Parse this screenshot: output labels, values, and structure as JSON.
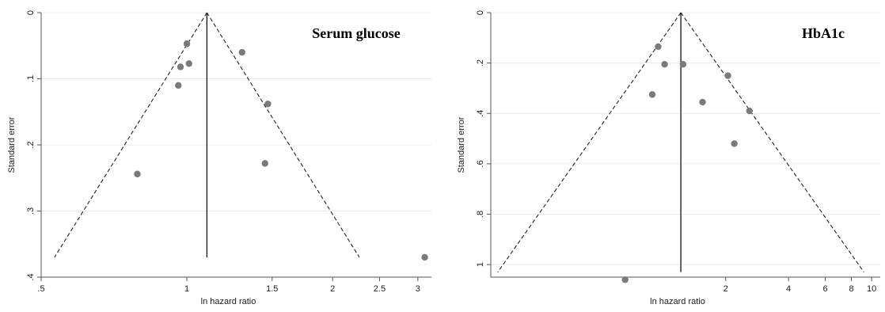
{
  "chart_data": [
    {
      "type": "scatter",
      "subtype": "funnel",
      "title": "Serum glucose",
      "xlabel": "ln hazard ratio",
      "ylabel": "Standard error",
      "x_scale": "log",
      "xlim": [
        0.5,
        3.2
      ],
      "ylim": [
        0,
        0.4
      ],
      "y_reversed": true,
      "grid": "horizontal",
      "x_ticks": [
        {
          "value": 0.5,
          "label": ".5"
        },
        {
          "value": 1,
          "label": "1"
        },
        {
          "value": 1.5,
          "label": "1.5"
        },
        {
          "value": 2,
          "label": "2"
        },
        {
          "value": 2.5,
          "label": "2.5"
        },
        {
          "value": 3,
          "label": "3"
        }
      ],
      "y_ticks": [
        {
          "value": 0,
          "label": "0"
        },
        {
          "value": 0.1,
          "label": ".1"
        },
        {
          "value": 0.2,
          "label": ".2"
        },
        {
          "value": 0.3,
          "label": ".3"
        },
        {
          "value": 0.4,
          "label": ".4"
        }
      ],
      "pooled_estimate": 1.1,
      "funnel_se_max": 0.37,
      "points": [
        {
          "x": 1.0,
          "y": 0.047
        },
        {
          "x": 0.97,
          "y": 0.082
        },
        {
          "x": 1.01,
          "y": 0.077
        },
        {
          "x": 0.96,
          "y": 0.11
        },
        {
          "x": 1.3,
          "y": 0.06
        },
        {
          "x": 1.47,
          "y": 0.138
        },
        {
          "x": 1.45,
          "y": 0.228
        },
        {
          "x": 0.79,
          "y": 0.244
        },
        {
          "x": 3.1,
          "y": 0.37
        }
      ]
    },
    {
      "type": "scatter",
      "subtype": "funnel",
      "title": "HbA1c",
      "xlabel": "ln hazard ratio",
      "ylabel": "Standard error",
      "x_scale": "log",
      "xlim": [
        0.15,
        11
      ],
      "ylim": [
        0,
        1.05
      ],
      "y_reversed": true,
      "grid": "horizontal",
      "x_ticks": [
        {
          "value": 2,
          "label": "2"
        },
        {
          "value": 4,
          "label": "4"
        },
        {
          "value": 6,
          "label": "6"
        },
        {
          "value": 8,
          "label": "8"
        },
        {
          "value": 10,
          "label": "10"
        }
      ],
      "y_ticks": [
        {
          "value": 0,
          "label": "0"
        },
        {
          "value": 0.2,
          "label": ".2"
        },
        {
          "value": 0.4,
          "label": ".4"
        },
        {
          "value": 0.6,
          "label": ".6"
        },
        {
          "value": 0.8,
          "label": ".8"
        },
        {
          "value": 1.0,
          "label": "1"
        }
      ],
      "pooled_estimate": 1.22,
      "funnel_se_max": 1.03,
      "points": [
        {
          "x": 0.95,
          "y": 0.135
        },
        {
          "x": 1.02,
          "y": 0.205
        },
        {
          "x": 1.25,
          "y": 0.205
        },
        {
          "x": 2.05,
          "y": 0.25
        },
        {
          "x": 0.89,
          "y": 0.325
        },
        {
          "x": 1.55,
          "y": 0.355
        },
        {
          "x": 2.6,
          "y": 0.39
        },
        {
          "x": 2.2,
          "y": 0.52
        },
        {
          "x": 0.66,
          "y": 1.06
        }
      ]
    }
  ]
}
